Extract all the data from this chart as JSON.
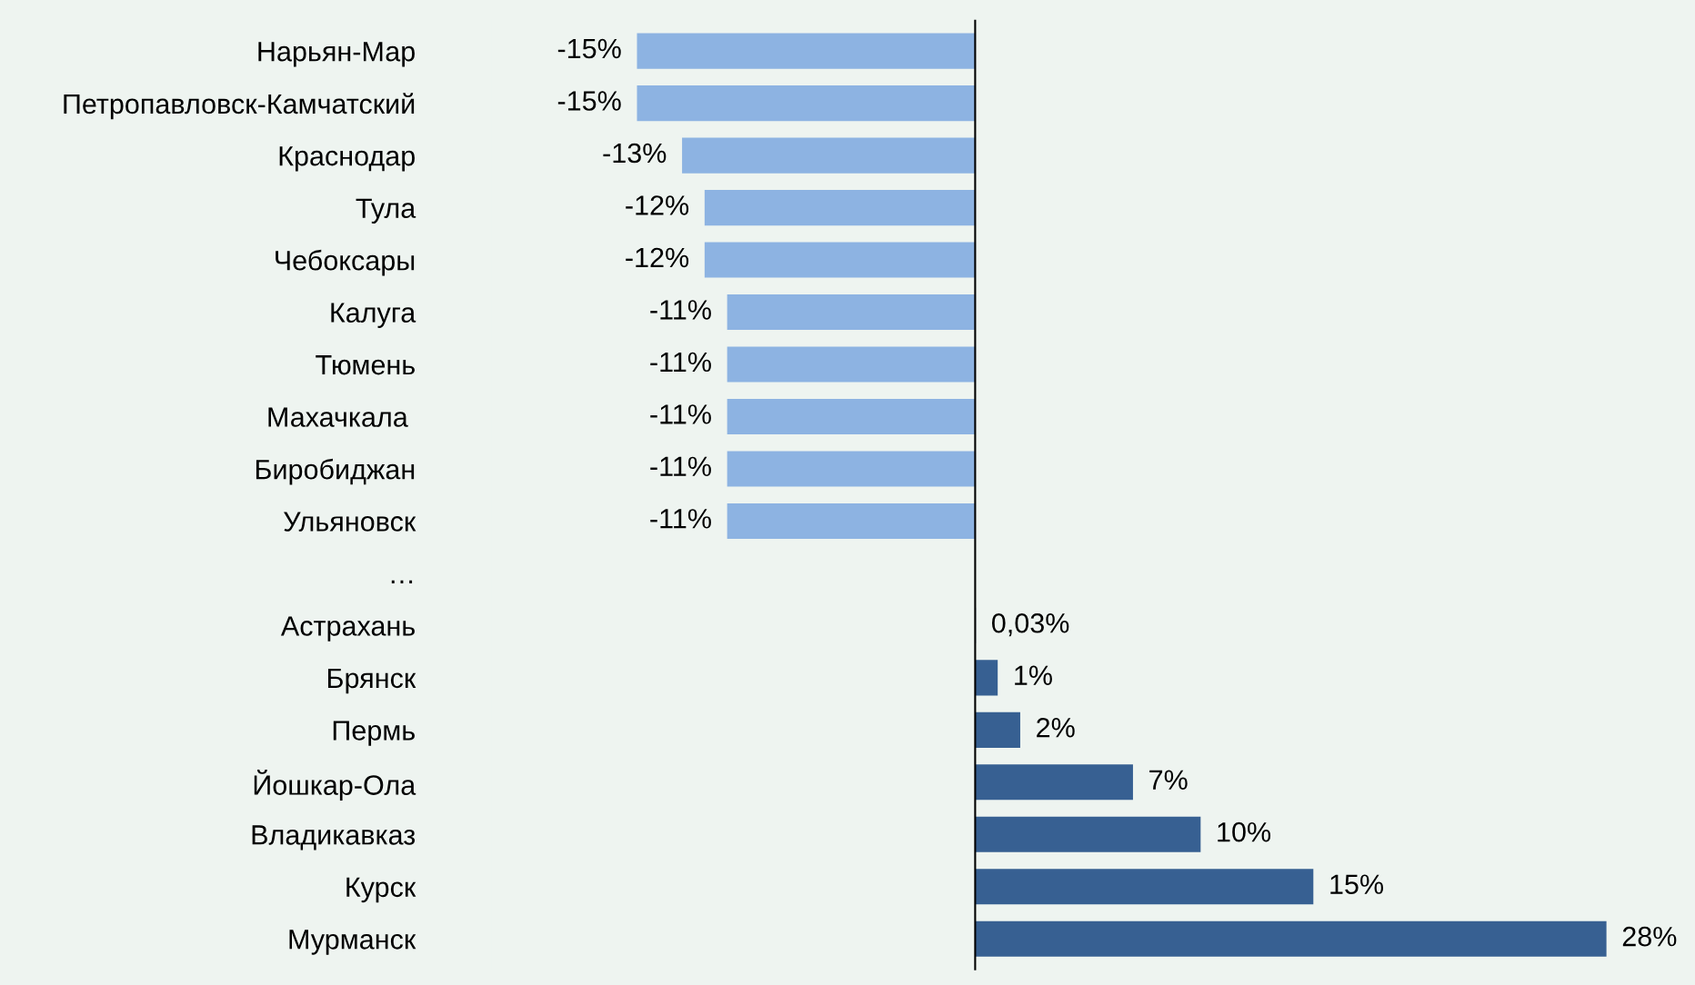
{
  "chart_data": {
    "type": "bar",
    "orientation": "horizontal",
    "categories": [
      "Нарьян-Мар",
      "Петропавловск-Камчатский",
      "Краснодар",
      "Тула",
      "Чебоксары",
      "Калуга",
      "Тюмень",
      "Махачкала ",
      "Биробиджан",
      "Ульяновск",
      "…",
      "Астрахань",
      "Брянск",
      "Пермь",
      "Йошкар-Ола",
      "Владикавказ",
      "Курск",
      "Мурманск"
    ],
    "values": [
      -15,
      -15,
      -13,
      -12,
      -12,
      -11,
      -11,
      -11,
      -11,
      -11,
      null,
      0.03,
      1,
      2,
      7,
      10,
      15,
      28
    ],
    "colors": [
      "#8db3e2",
      "#8db3e2",
      "#8db3e2",
      "#8db3e2",
      "#8db3e2",
      "#8db3e2",
      "#8db3e2",
      "#8db3e2",
      "#8db3e2",
      "#8db3e2",
      "#8db3e2",
      "#376092",
      "#376092",
      "#376092",
      "#376092",
      "#376092",
      "#376092",
      "#376092"
    ],
    "value_labels": [
      "-15%",
      "-15%",
      "-13%",
      "-12%",
      "-12%",
      "-11%",
      "-11%",
      "-11%",
      "-11%",
      "-11%",
      null,
      "0,03%",
      "1%",
      "2%",
      "7%",
      "10%",
      "15%",
      "28%"
    ],
    "tick_labels": "y",
    "grid": false,
    "legend": false
  }
}
